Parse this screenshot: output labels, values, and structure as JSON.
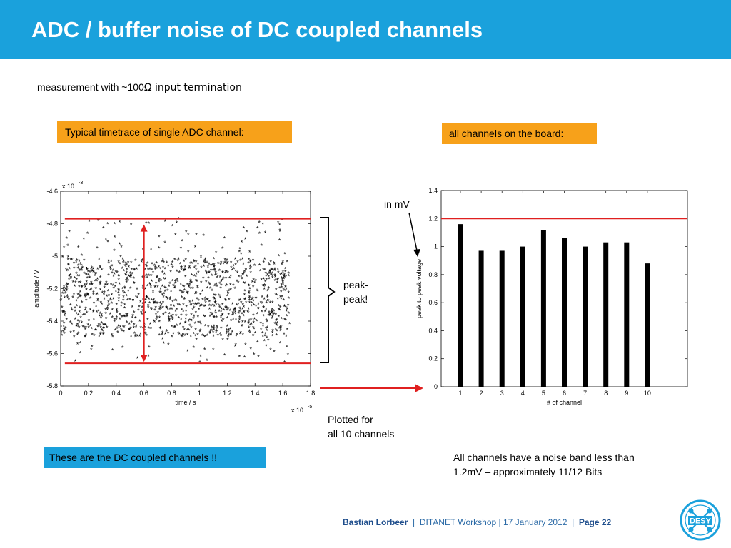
{
  "slide": {
    "title": "ADC / buffer noise of DC coupled channels",
    "subtitle_prefix": "measurement with ~100",
    "subtitle_omega": "Ω",
    "subtitle_suffix": " input termination",
    "box_left": "Typical timetrace of single ADC channel:",
    "box_right": "all channels on the board:",
    "in_mv": "in mV",
    "peak_peak_line1": "peak-",
    "peak_peak_line2": "peak!",
    "plotted_line1": "Plotted for",
    "plotted_line2": "all 10 channels",
    "dc_note": "These are the DC coupled channels !!",
    "conclusion_line1": "All channels have a noise band less than",
    "conclusion_line2": "1.2mV – approximately 11/12 Bits",
    "footer_author": "Bastian Lorbeer",
    "footer_sep": "|",
    "footer_event": "DITANET Workshop | 17 January 2012",
    "footer_page": "Page 22",
    "logo_text": "DESY",
    "colors": {
      "title_bar": "#1aa1dc",
      "orange_box": "#f7a11a",
      "blue_box": "#1aa1dc",
      "red_line": "#e02020"
    }
  },
  "chart_data": [
    {
      "type": "scatter",
      "xlabel": "time / s",
      "ylabel": "amplitude / V",
      "x_multiplier": "x 10",
      "x_multiplier_exp": "-5",
      "y_multiplier": "x 10",
      "y_multiplier_exp": "-3",
      "xlim": [
        0,
        1.8
      ],
      "ylim": [
        -5.8,
        -4.6
      ],
      "x_ticks": [
        "0",
        "0.2",
        "0.4",
        "0.6",
        "0.8",
        "1",
        "1.2",
        "1.4",
        "1.6",
        "1.8"
      ],
      "y_ticks": [
        "-4.6",
        "-4.8",
        "-5",
        "-5.2",
        "-5.4",
        "-5.6",
        "-5.8"
      ],
      "x_range_data": [
        0,
        1.65
      ],
      "band_dense": [
        -5.5,
        -5.02
      ],
      "band_sparse": [
        -5.66,
        -4.77
      ],
      "ref_lines": [
        -4.77,
        -5.66
      ],
      "marker": "*"
    },
    {
      "type": "bar",
      "xlabel": "# of channel",
      "ylabel": "peak to peak voltage",
      "categories": [
        "1",
        "2",
        "3",
        "4",
        "5",
        "6",
        "7",
        "8",
        "9",
        "10"
      ],
      "values": [
        1.16,
        0.97,
        0.97,
        1.0,
        1.12,
        1.06,
        1.0,
        1.03,
        1.03,
        0.88
      ],
      "ylim": [
        0,
        1.4
      ],
      "y_ticks": [
        "0",
        "0.2",
        "0.4",
        "0.6",
        "0.8",
        "1",
        "1.2",
        "1.4"
      ],
      "ref_line": 1.2
    }
  ]
}
